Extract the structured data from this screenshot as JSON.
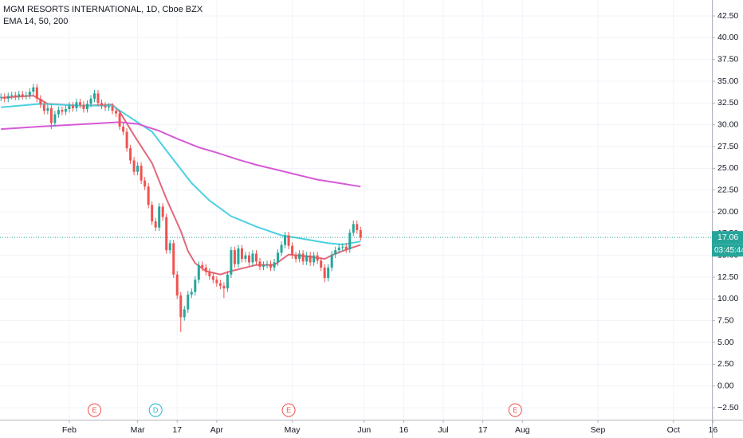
{
  "chart_data": {
    "type": "candlestick",
    "title": "MGM RESORTS INTERNATIONAL, 1D, Cboe BZX",
    "subtitle": "EMA 14, 50, 200",
    "up_color": "#26a69a",
    "down_color": "#ef5350",
    "grid": true,
    "xlim": [
      1.73,
      199.7
    ],
    "ylim": [
      -3.87,
      44.33
    ],
    "xticks": [
      {
        "value": 21,
        "label": "Feb"
      },
      {
        "value": 40,
        "label": "Mar"
      },
      {
        "value": 51,
        "label": "17"
      },
      {
        "value": 62,
        "label": "Apr"
      },
      {
        "value": 83,
        "label": "May"
      },
      {
        "value": 103,
        "label": "Jun"
      },
      {
        "value": 114,
        "label": "16"
      },
      {
        "value": 125,
        "label": "Jul"
      },
      {
        "value": 136,
        "label": "17"
      },
      {
        "value": 147,
        "label": "Aug"
      },
      {
        "value": 168,
        "label": "Sep"
      },
      {
        "value": 189,
        "label": "Oct"
      },
      {
        "value": 200,
        "label": "16"
      }
    ],
    "yticks": [
      {
        "value": 42.5,
        "label": "42.50"
      },
      {
        "value": 40,
        "label": "40.00"
      },
      {
        "value": 37.5,
        "label": "37.50"
      },
      {
        "value": 35,
        "label": "35.00"
      },
      {
        "value": 32.5,
        "label": "32.50"
      },
      {
        "value": 30,
        "label": "30.00"
      },
      {
        "value": 27.5,
        "label": "27.50"
      },
      {
        "value": 25,
        "label": "25.00"
      },
      {
        "value": 22.5,
        "label": "22.50"
      },
      {
        "value": 20,
        "label": "20.00"
      },
      {
        "value": 17.5,
        "label": "17.50"
      },
      {
        "value": 15,
        "label": "15.00"
      },
      {
        "value": 12.5,
        "label": "12.50"
      },
      {
        "value": 10,
        "label": "10.00"
      },
      {
        "value": 7.5,
        "label": "7.50"
      },
      {
        "value": 5,
        "label": "5.00"
      },
      {
        "value": 2.5,
        "label": "2.50"
      },
      {
        "value": 0,
        "label": "0.00"
      },
      {
        "value": -2.5,
        "label": "−2.50"
      }
    ],
    "candles": {
      "x": [
        2,
        3,
        4,
        5,
        6,
        7,
        8,
        9,
        10,
        11,
        12,
        13,
        14,
        15,
        16,
        17,
        18,
        19,
        20,
        21,
        22,
        23,
        24,
        25,
        26,
        27,
        28,
        29,
        30,
        31,
        32,
        33,
        34,
        35,
        36,
        37,
        38,
        39,
        40,
        41,
        42,
        43,
        44,
        45,
        46,
        47,
        48,
        49,
        50,
        51,
        52,
        53,
        54,
        55,
        56,
        57,
        58,
        59,
        60,
        61,
        62,
        63,
        64,
        65,
        66,
        67,
        68,
        69,
        70,
        71,
        72,
        73,
        74,
        75,
        76,
        77,
        78,
        79,
        80,
        81,
        82,
        83,
        84,
        85,
        86,
        87,
        88,
        89,
        90,
        91,
        92,
        93,
        94,
        95,
        96,
        97,
        98,
        99,
        100,
        101,
        102
      ],
      "open": [
        33.1,
        33.2,
        33.0,
        33.3,
        33.4,
        33.2,
        33.5,
        33.3,
        33.4,
        33.8,
        34.3,
        33.0,
        32.3,
        31.6,
        31.9,
        30.2,
        31.2,
        31.7,
        31.5,
        31.8,
        32.2,
        31.9,
        32.6,
        32.3,
        31.8,
        32.4,
        33.0,
        33.6,
        32.5,
        32.2,
        32.0,
        32.1,
        31.6,
        31.3,
        29.8,
        29.2,
        27.3,
        25.9,
        24.6,
        25.3,
        23.6,
        22.9,
        20.8,
        18.9,
        18.2,
        20.6,
        19.4,
        15.6,
        16.4,
        12.8,
        10.4,
        7.9,
        8.8,
        10.5,
        10.8,
        12.2,
        13.9,
        13.6,
        13.1,
        12.6,
        12.2,
        11.8,
        11.5,
        11.2,
        12.8,
        15.6,
        14.0,
        15.8,
        14.6,
        15.0,
        14.2,
        15.2,
        14.3,
        13.7,
        13.9,
        14.0,
        13.6,
        14.2,
        15.3,
        16.2,
        17.3,
        16.1,
        15.0,
        14.6,
        15.2,
        14.3,
        15.0,
        14.2,
        15.0,
        14.4,
        13.6,
        12.4,
        13.6,
        15.1,
        15.6,
        15.9,
        16.0,
        15.7,
        17.6,
        18.6,
        17.9
      ],
      "high": [
        33.6,
        33.6,
        33.7,
        33.8,
        33.8,
        33.9,
        33.9,
        33.8,
        34.2,
        34.7,
        34.7,
        33.4,
        32.7,
        32.3,
        32.3,
        31.6,
        32.1,
        32.1,
        32.2,
        32.6,
        32.6,
        33.0,
        33.0,
        32.7,
        32.8,
        33.4,
        34.0,
        34.0,
        32.9,
        32.6,
        32.5,
        32.5,
        32.0,
        31.7,
        30.2,
        29.6,
        27.7,
        26.3,
        25.7,
        25.7,
        24.0,
        23.3,
        21.2,
        19.3,
        21.0,
        21.0,
        19.8,
        16.8,
        16.8,
        13.2,
        10.8,
        9.2,
        10.9,
        11.2,
        12.6,
        14.3,
        14.3,
        14.0,
        13.5,
        13.0,
        12.6,
        12.2,
        11.9,
        13.2,
        16.0,
        16.0,
        16.2,
        16.2,
        15.4,
        15.4,
        15.6,
        15.6,
        14.7,
        14.3,
        14.4,
        14.4,
        14.6,
        15.7,
        16.6,
        17.7,
        17.7,
        16.5,
        15.4,
        15.6,
        15.6,
        15.4,
        15.4,
        15.4,
        15.4,
        14.8,
        14.0,
        14.0,
        15.5,
        16.0,
        16.3,
        16.4,
        16.4,
        18.0,
        19.0,
        19.0,
        18.3
      ],
      "low": [
        32.7,
        32.6,
        32.6,
        32.9,
        32.8,
        32.8,
        32.9,
        32.9,
        33.0,
        33.4,
        32.6,
        31.9,
        31.2,
        31.2,
        29.5,
        29.8,
        30.8,
        31.1,
        31.1,
        31.4,
        31.5,
        31.5,
        31.9,
        31.4,
        31.4,
        32.0,
        32.6,
        32.1,
        31.8,
        31.6,
        31.6,
        31.2,
        30.9,
        29.4,
        28.8,
        26.9,
        25.5,
        24.2,
        24.2,
        23.2,
        22.5,
        20.4,
        18.5,
        17.8,
        17.8,
        19.0,
        15.2,
        15.2,
        12.4,
        10.0,
        6.2,
        7.5,
        8.4,
        10.1,
        10.4,
        11.8,
        13.2,
        12.7,
        12.2,
        11.8,
        11.4,
        11.1,
        10.1,
        10.8,
        12.4,
        13.6,
        13.6,
        14.2,
        14.2,
        13.8,
        13.8,
        13.9,
        13.3,
        13.3,
        13.5,
        13.2,
        13.2,
        13.8,
        14.9,
        15.8,
        15.7,
        14.6,
        14.2,
        14.2,
        13.9,
        13.9,
        13.8,
        13.8,
        14.0,
        13.2,
        11.9,
        12.0,
        13.2,
        14.7,
        15.2,
        15.5,
        15.3,
        15.3,
        17.2,
        17.5,
        16.7
      ],
      "close": [
        33.2,
        33.0,
        33.3,
        33.4,
        33.2,
        33.5,
        33.3,
        33.4,
        33.8,
        34.3,
        33.0,
        32.3,
        31.6,
        31.9,
        30.2,
        31.2,
        31.7,
        31.5,
        31.8,
        32.2,
        31.9,
        32.6,
        32.3,
        31.8,
        32.4,
        33.0,
        33.6,
        32.5,
        32.2,
        32.0,
        32.1,
        31.6,
        31.3,
        29.8,
        29.2,
        27.3,
        25.9,
        24.6,
        25.3,
        23.6,
        22.9,
        20.8,
        18.9,
        18.2,
        20.6,
        19.4,
        15.6,
        16.4,
        12.8,
        10.4,
        7.9,
        8.8,
        10.5,
        10.8,
        12.2,
        13.9,
        13.6,
        13.1,
        12.6,
        12.2,
        11.8,
        11.5,
        11.2,
        12.8,
        15.6,
        14.0,
        15.8,
        14.6,
        15.0,
        14.2,
        15.2,
        14.3,
        13.7,
        13.9,
        14.0,
        13.6,
        14.2,
        15.3,
        16.2,
        17.3,
        16.1,
        15.0,
        14.6,
        15.2,
        14.3,
        15.0,
        14.2,
        15.0,
        14.4,
        13.6,
        12.4,
        13.6,
        15.1,
        15.6,
        15.9,
        16.0,
        15.7,
        17.6,
        18.6,
        17.9,
        17.06
      ]
    },
    "lines": [
      {
        "color": "#e2687a",
        "x": [
          2,
          11,
          15,
          24,
          33,
          35,
          39,
          44,
          48,
          52,
          54,
          56,
          59,
          63,
          66,
          73,
          78,
          82,
          87,
          92,
          95,
          99,
          102
        ],
        "values": [
          33.1,
          33.35,
          32.4,
          32.2,
          32.3,
          31.5,
          28.8,
          25.6,
          21.5,
          17.8,
          15.5,
          14.1,
          13.2,
          12.8,
          13.2,
          13.9,
          13.9,
          15.1,
          14.9,
          14.6,
          15.2,
          15.8,
          16.2
        ]
      },
      {
        "color": "#4dd0e1",
        "x": [
          2,
          13,
          24,
          33,
          37,
          44,
          49,
          55,
          60,
          66,
          73,
          80,
          86,
          93,
          97,
          102
        ],
        "values": [
          32.0,
          32.4,
          32.2,
          32.2,
          31.1,
          29.2,
          26.5,
          23.3,
          21.3,
          19.5,
          18.3,
          17.3,
          16.9,
          16.4,
          16.25,
          16.6
        ]
      },
      {
        "color": "#d65ad6",
        "x": [
          2,
          13,
          24,
          35,
          40,
          46,
          51,
          57,
          62,
          68,
          73,
          79,
          85,
          90,
          96,
          102
        ],
        "values": [
          29.5,
          29.8,
          30.05,
          30.3,
          30.1,
          29.3,
          28.4,
          27.4,
          26.8,
          26.0,
          25.4,
          24.8,
          24.2,
          23.7,
          23.3,
          22.9
        ]
      }
    ],
    "price_line": {
      "value": 17.06,
      "label": "17.06",
      "color": "#26a69a"
    },
    "countdown": "03:45:44",
    "events": [
      {
        "x": 28,
        "label": "E",
        "color": "#ef5350"
      },
      {
        "x": 45,
        "label": "D",
        "color": "#22b8cf"
      },
      {
        "x": 82,
        "label": "E",
        "color": "#ef5350"
      },
      {
        "x": 145,
        "label": "E",
        "color": "#ef5350"
      }
    ]
  }
}
